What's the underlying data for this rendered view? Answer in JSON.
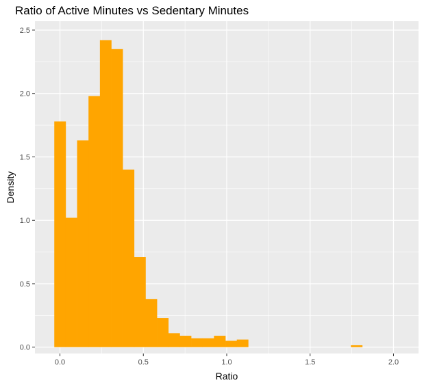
{
  "chart_data": {
    "type": "bar",
    "title": "Ratio of Active Minutes vs Sedentary Minutes",
    "xlabel": "Ratio",
    "ylabel": "Density",
    "xlim": [
      -0.15,
      2.15
    ],
    "ylim": [
      -0.05,
      2.57
    ],
    "xticks": [
      0.0,
      0.5,
      1.0,
      1.5,
      2.0
    ],
    "xtick_labels": [
      "0.0",
      "0.5",
      "1.0",
      "1.5",
      "2.0"
    ],
    "yticks": [
      0.0,
      0.5,
      1.0,
      1.5,
      2.0,
      2.5
    ],
    "ytick_labels": [
      "0.0",
      "0.5",
      "1.0",
      "1.5",
      "2.0",
      "2.5"
    ],
    "bin_width": 0.0684,
    "bins_start": -0.034,
    "values": [
      1.78,
      1.02,
      1.63,
      1.98,
      2.42,
      2.35,
      1.4,
      0.71,
      0.38,
      0.23,
      0.11,
      0.09,
      0.07,
      0.07,
      0.09,
      0.05,
      0.06,
      0,
      0,
      0,
      0,
      0,
      0,
      0,
      0,
      0,
      0.015,
      0,
      0,
      0,
      0,
      0,
      0,
      0.015
    ],
    "grid": true,
    "bar_color": "#FFA500",
    "panel_color": "#EBEBEB",
    "grid_color": "#FFFFFF"
  }
}
